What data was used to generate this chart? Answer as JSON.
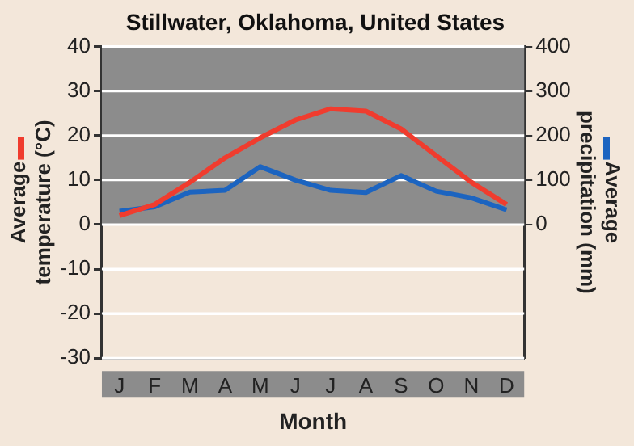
{
  "chart_data": {
    "type": "line",
    "title": "Stillwater, Oklahoma, United States",
    "xlabel": "Month",
    "ylabel": "Average temperature (°C)",
    "y2label": "Average precipitation (mm)",
    "categories": [
      "J",
      "F",
      "M",
      "A",
      "M",
      "J",
      "J",
      "A",
      "S",
      "O",
      "N",
      "D"
    ],
    "series": [
      {
        "color": "#f03c2e",
        "values": [
          2,
          4.5,
          9.5,
          15,
          19.5,
          23.5,
          26,
          25.5,
          21.5,
          15.5,
          9.5,
          4.5
        ]
      },
      {
        "color": "#1c64c0",
        "axis": "y2",
        "values": [
          30,
          40,
          73,
          77,
          130,
          100,
          77,
          72,
          110,
          75,
          60,
          33
        ]
      }
    ],
    "ylim": [
      -30,
      40
    ],
    "yticks": [
      -30,
      -20,
      -10,
      0,
      10,
      20,
      30,
      40
    ],
    "y2lim": [
      -300,
      400
    ],
    "y2ticks": [
      0,
      100,
      200,
      300,
      400
    ],
    "bands": [
      {
        "axis": "y",
        "from": 0,
        "to": 40,
        "color": "#8c8c8c"
      }
    ],
    "grid": "y",
    "legend": false,
    "marker": "none",
    "line_style": "solid"
  }
}
